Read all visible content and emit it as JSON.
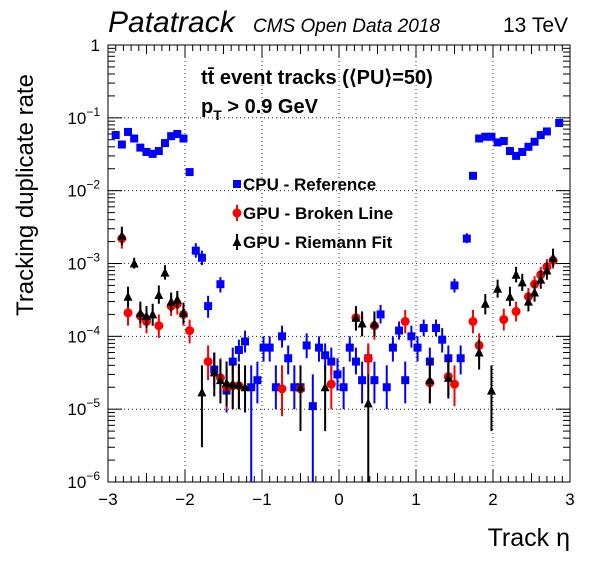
{
  "header": {
    "brand": "Patatrack",
    "subtitle": "CMS Open Data 2018",
    "energy": "13 TeV"
  },
  "annotations": {
    "line1": "tt̄ event tracks (⟨PU⟩=50)",
    "line2_main": "p",
    "line2_sub": "T",
    "line2_rest": " > 0.9 GeV"
  },
  "chart_data": {
    "type": "scatter",
    "xlabel": "Track η",
    "ylabel": "Tracking duplicate rate",
    "xlim": [
      -3,
      3
    ],
    "ylim": [
      1e-06,
      1
    ],
    "y_scale": "log",
    "grid": true,
    "legend_position": "upper-left-center",
    "x_ticks": [
      "−3",
      "−2",
      "−1",
      "0",
      "1",
      "2",
      "3"
    ],
    "y_ticks": [
      {
        "base": "10",
        "exp": "−6"
      },
      {
        "base": "10",
        "exp": "−5"
      },
      {
        "base": "10",
        "exp": "−4"
      },
      {
        "base": "10",
        "exp": "−3"
      },
      {
        "base": "10",
        "exp": "−2"
      },
      {
        "base": "10",
        "exp": "−1"
      },
      {
        "base": "1",
        "exp": ""
      }
    ],
    "series": [
      {
        "name": "CPU - Reference",
        "color": "#0000ff",
        "marker": "square",
        "points": [
          [
            -2.9,
            0.058,
            0.052,
            0.066
          ],
          [
            -2.82,
            0.043,
            0.039,
            0.048
          ],
          [
            -2.74,
            0.064,
            0.058,
            0.071
          ],
          [
            -2.66,
            0.052,
            0.047,
            0.058
          ],
          [
            -2.58,
            0.039,
            0.035,
            0.043
          ],
          [
            -2.5,
            0.034,
            0.031,
            0.038
          ],
          [
            -2.42,
            0.032,
            0.029,
            0.036
          ],
          [
            -2.34,
            0.035,
            0.032,
            0.039
          ],
          [
            -2.26,
            0.045,
            0.041,
            0.05
          ],
          [
            -2.18,
            0.056,
            0.051,
            0.062
          ],
          [
            -2.1,
            0.06,
            0.054,
            0.067
          ],
          [
            -2.02,
            0.052,
            0.047,
            0.058
          ],
          [
            -1.94,
            0.018,
            0.016,
            0.02
          ],
          [
            -1.86,
            0.0015,
            0.0012,
            0.0019
          ],
          [
            -1.78,
            0.0012,
            0.00095,
            0.0015
          ],
          [
            -1.7,
            0.00026,
            0.00018,
            0.00036
          ],
          [
            -1.62,
            3.5e-05,
            2e-05,
            6e-05
          ],
          [
            -1.54,
            0.00052,
            0.0004,
            0.00065
          ],
          [
            -1.46,
            1.8e-05,
            9e-06,
            3.5e-05
          ],
          [
            -1.38,
            4.5e-05,
            3e-05,
            7e-05
          ],
          [
            -1.3,
            6.5e-05,
            4.5e-05,
            9e-05
          ],
          [
            -1.22,
            8.5e-05,
            6e-05,
            0.00012
          ],
          [
            -1.14,
            2e-05,
            1e-06,
            4e-05
          ],
          [
            -1.06,
            2.5e-05,
            1.2e-05,
            4.5e-05
          ],
          [
            -0.98,
            7e-05,
            4.5e-05,
            0.0001
          ],
          [
            -0.9,
            7e-05,
            4.5e-05,
            0.0001
          ],
          [
            -0.82,
            2e-05,
            1e-05,
            4e-05
          ],
          [
            -0.74,
            0.0001,
            7e-05,
            0.00014
          ],
          [
            -0.66,
            5e-05,
            3e-05,
            7.5e-05
          ],
          [
            -0.58,
            2e-05,
            1e-05,
            4e-05
          ],
          [
            -0.5,
            2e-05,
            1e-05,
            3.8e-05
          ],
          [
            -0.42,
            7.5e-05,
            5e-05,
            0.00011
          ],
          [
            -0.34,
            1.1e-05,
            1e-06,
            3e-05
          ],
          [
            -0.26,
            7e-05,
            4.5e-05,
            0.0001
          ],
          [
            -0.18,
            5.5e-05,
            3.5e-05,
            8e-05
          ],
          [
            -0.1,
            4.5e-05,
            3e-05,
            7e-05
          ],
          [
            -0.02,
            3e-05,
            1.8e-05,
            5e-05
          ],
          [
            0.06,
            2e-05,
            1e-05,
            3.8e-05
          ],
          [
            0.14,
            7e-05,
            4.5e-05,
            0.0001
          ],
          [
            0.22,
            4.5e-05,
            3e-05,
            7e-05
          ],
          [
            0.3,
            2.5e-05,
            1.2e-05,
            4.5e-05
          ],
          [
            0.38,
            5e-05,
            3e-05,
            7.5e-05
          ],
          [
            0.46,
            2.5e-05,
            1.2e-05,
            4.5e-05
          ],
          [
            0.54,
            0.0002,
            0.00015,
            0.00027
          ],
          [
            0.62,
            2e-05,
            1e-05,
            4e-05
          ],
          [
            0.7,
            7e-05,
            4.5e-05,
            0.0001
          ],
          [
            0.78,
            0.00012,
            9e-05,
            0.00016
          ],
          [
            0.86,
            2.5e-05,
            1.2e-05,
            4.5e-05
          ],
          [
            0.94,
            0.0001,
            7e-05,
            0.00014
          ],
          [
            1.02,
            7e-05,
            4.5e-05,
            0.0001
          ],
          [
            1.1,
            0.00013,
            0.0001,
            0.00017
          ],
          [
            1.18,
            4.5e-05,
            3e-05,
            7e-05
          ],
          [
            1.26,
            0.00013,
            0.0001,
            0.00017
          ],
          [
            1.34,
            9e-05,
            6e-05,
            0.00013
          ],
          [
            1.42,
            5e-05,
            3.5e-05,
            7.5e-05
          ],
          [
            1.5,
            0.0005,
            0.0004,
            0.00062
          ],
          [
            1.58,
            5e-05,
            3e-05,
            7.5e-05
          ],
          [
            1.66,
            0.0022,
            0.0019,
            0.0026
          ],
          [
            1.74,
            0.016,
            0.0145,
            0.0177
          ],
          [
            1.82,
            0.052,
            0.047,
            0.058
          ],
          [
            1.9,
            0.055,
            0.05,
            0.061
          ],
          [
            1.98,
            0.055,
            0.05,
            0.061
          ],
          [
            2.06,
            0.046,
            0.042,
            0.051
          ],
          [
            2.14,
            0.048,
            0.043,
            0.053
          ],
          [
            2.22,
            0.035,
            0.032,
            0.039
          ],
          [
            2.3,
            0.03,
            0.027,
            0.034
          ],
          [
            2.38,
            0.034,
            0.031,
            0.038
          ],
          [
            2.46,
            0.04,
            0.036,
            0.044
          ],
          [
            2.54,
            0.047,
            0.043,
            0.052
          ],
          [
            2.62,
            0.058,
            0.052,
            0.064
          ],
          [
            2.7,
            0.065,
            0.058,
            0.072
          ],
          [
            2.86,
            0.085,
            0.076,
            0.094
          ]
        ]
      },
      {
        "name": "GPU - Broken Line",
        "color": "#ff0000",
        "marker": "circle",
        "points": [
          [
            -2.82,
            0.0022,
            0.0016,
            0.0029
          ],
          [
            -2.74,
            0.00021,
            0.00014,
            0.00031
          ],
          [
            -2.58,
            0.00019,
            0.00013,
            0.00027
          ],
          [
            -2.5,
            0.00016,
            0.00011,
            0.00023
          ],
          [
            -2.34,
            0.00014,
            9.5e-05,
            0.0002
          ],
          [
            -2.18,
            0.00026,
            0.00019,
            0.00036
          ],
          [
            -2.1,
            0.00028,
            0.0002,
            0.00038
          ],
          [
            -2.02,
            0.0002,
            0.00014,
            0.00028
          ],
          [
            -1.94,
            0.00012,
            8e-05,
            0.00017
          ],
          [
            -1.7,
            4.5e-05,
            2.5e-05,
            7.5e-05
          ],
          [
            -1.54,
            2.7e-05,
            1.4e-05,
            5e-05
          ],
          [
            -1.46,
            2e-05,
            1e-05,
            3.8e-05
          ],
          [
            -1.38,
            2.1e-05,
            1e-05,
            4e-05
          ],
          [
            -1.3,
            2.1e-05,
            1e-05,
            4e-05
          ],
          [
            -0.74,
            1.9e-05,
            8e-06,
            4e-05
          ],
          [
            -0.5,
            1.9e-05,
            8e-06,
            3.8e-05
          ],
          [
            -0.1,
            2.2e-05,
            1e-05,
            4e-05
          ],
          [
            0.22,
            0.00018,
            0.00012,
            0.00025
          ],
          [
            0.38,
            5e-05,
            3e-05,
            8e-05
          ],
          [
            0.46,
            0.00014,
            9e-05,
            0.0002
          ],
          [
            0.86,
            0.00016,
            0.00011,
            0.00023
          ],
          [
            1.18,
            2.3e-05,
            1.2e-05,
            4.5e-05
          ],
          [
            1.42,
            2.8e-05,
            1.5e-05,
            5e-05
          ],
          [
            1.5,
            2.2e-05,
            1.1e-05,
            4e-05
          ],
          [
            1.74,
            0.00016,
            0.00011,
            0.00023
          ],
          [
            1.82,
            7.5e-05,
            4.8e-05,
            0.00011
          ],
          [
            2.14,
            0.00017,
            0.00012,
            0.00024
          ],
          [
            2.3,
            0.00022,
            0.00016,
            0.0003
          ],
          [
            2.46,
            0.00035,
            0.00026,
            0.00046
          ],
          [
            2.54,
            0.00052,
            0.0004,
            0.00067
          ],
          [
            2.62,
            0.0007,
            0.00055,
            0.0009
          ],
          [
            2.7,
            0.0009,
            0.0007,
            0.00115
          ],
          [
            2.78,
            0.0011,
            0.00085,
            0.0014
          ]
        ]
      },
      {
        "name": "GPU - Riemann Fit",
        "color": "#000000",
        "marker": "triangle",
        "points": [
          [
            -2.82,
            0.0024,
            0.0018,
            0.0032
          ],
          [
            -2.74,
            0.00035,
            0.00025,
            0.00048
          ],
          [
            -2.66,
            0.001,
            0.00085,
            0.0012
          ],
          [
            -2.58,
            0.00021,
            0.00015,
            0.0003
          ],
          [
            -2.5,
            0.00019,
            0.00013,
            0.00026
          ],
          [
            -2.42,
            0.0002,
            0.00014,
            0.00028
          ],
          [
            -2.34,
            0.00037,
            0.00028,
            0.0005
          ],
          [
            -2.26,
            0.00075,
            0.0006,
            0.00095
          ],
          [
            -2.18,
            0.0003,
            0.00022,
            0.0004
          ],
          [
            -2.1,
            0.00032,
            0.00024,
            0.00042
          ],
          [
            -2.02,
            0.00021,
            0.00015,
            0.00029
          ],
          [
            -1.78,
            1.7e-05,
            3e-06,
            4e-05
          ],
          [
            -1.62,
            3.2e-05,
            1.5e-05,
            6e-05
          ],
          [
            -1.54,
            2.5e-05,
            1.2e-05,
            4.8e-05
          ],
          [
            -1.46,
            2.3e-05,
            1.1e-05,
            4.5e-05
          ],
          [
            -1.38,
            2.2e-05,
            1e-05,
            4.2e-05
          ],
          [
            -1.3,
            2.2e-05,
            1e-05,
            4.2e-05
          ],
          [
            -1.22,
            2e-05,
            9e-06,
            4e-05
          ],
          [
            -0.5,
            2e-05,
            5e-06,
            4e-05
          ],
          [
            -0.18,
            2e-05,
            5e-06,
            4e-05
          ],
          [
            0.22,
            0.00018,
            0.00012,
            0.00026
          ],
          [
            0.3,
            0.00015,
            0.0001,
            0.00022
          ],
          [
            0.38,
            1.2e-05,
            1e-06,
            3e-05
          ],
          [
            0.46,
            0.00015,
            0.0001,
            0.00022
          ],
          [
            1.18,
            2.5e-05,
            1.2e-05,
            4.8e-05
          ],
          [
            1.42,
            2.7e-05,
            1.4e-05,
            5e-05
          ],
          [
            1.82,
            6e-05,
            3.5e-05,
            9e-05
          ],
          [
            1.9,
            0.00028,
            0.0002,
            0.00038
          ],
          [
            1.98,
            1.8e-05,
            5e-06,
            4e-05
          ],
          [
            2.06,
            0.00045,
            0.00034,
            0.0006
          ],
          [
            2.22,
            0.00035,
            0.00026,
            0.00048
          ],
          [
            2.3,
            0.0007,
            0.00055,
            0.0009
          ],
          [
            2.38,
            0.00055,
            0.00042,
            0.00072
          ],
          [
            2.46,
            0.0003,
            0.00022,
            0.0004
          ],
          [
            2.54,
            0.0004,
            0.0003,
            0.00055
          ],
          [
            2.62,
            0.0006,
            0.00045,
            0.0008
          ],
          [
            2.7,
            0.0008,
            0.0006,
            0.00105
          ],
          [
            2.78,
            0.0012,
            0.0009,
            0.0016
          ]
        ]
      }
    ]
  }
}
